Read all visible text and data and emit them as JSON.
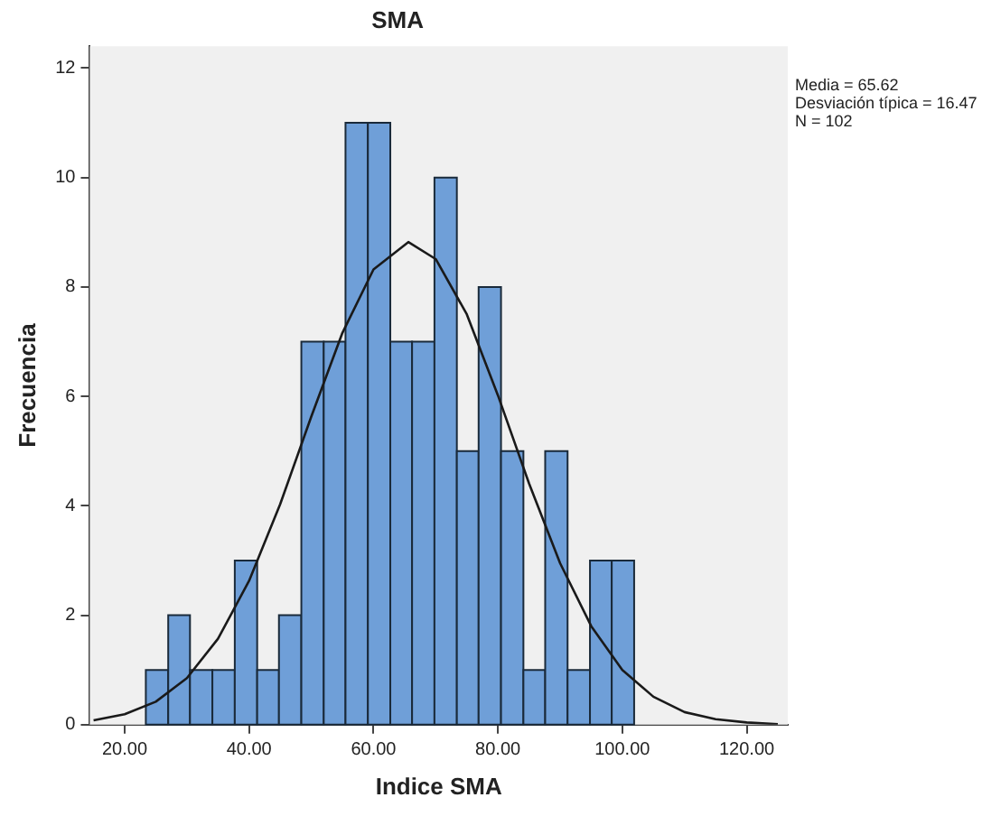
{
  "chart_data": {
    "type": "histogram",
    "title": "SMA",
    "xlabel": "Indice SMA",
    "ylabel": "Frecuencia",
    "bins": [
      23.4,
      27.0,
      30.5,
      34.1,
      37.7,
      41.3,
      44.8,
      48.4,
      52.0,
      55.5,
      59.1,
      62.7,
      66.2,
      69.8,
      73.4,
      76.9,
      80.5,
      84.1,
      87.6,
      91.2,
      94.8,
      98.3,
      101.9
    ],
    "values": [
      1,
      2,
      1,
      1,
      3,
      1,
      2,
      7,
      7,
      11,
      11,
      7,
      7,
      10,
      5,
      8,
      5,
      1,
      5,
      1,
      3,
      3
    ],
    "color": "#6f9fd8",
    "series": [
      {
        "type": "line",
        "color": "#1a1a1a",
        "x": [
          15,
          20,
          25,
          30,
          35,
          40,
          45,
          50,
          55,
          60,
          65.6,
          70,
          75,
          80,
          85,
          90,
          95,
          100,
          105,
          110,
          115,
          120,
          125
        ],
        "values": [
          0.08,
          0.19,
          0.42,
          0.85,
          1.57,
          2.63,
          4.03,
          5.63,
          7.16,
          8.32,
          8.82,
          8.51,
          7.5,
          6.02,
          4.41,
          2.95,
          1.8,
          1.0,
          0.51,
          0.23,
          0.1,
          0.04,
          0.01
        ]
      }
    ],
    "xlim": [
      14.4,
      126.6
    ],
    "xticks": [
      {
        "value": 20,
        "label": "20.00"
      },
      {
        "value": 40,
        "label": "40.00"
      },
      {
        "value": 60,
        "label": "60.00"
      },
      {
        "value": 80,
        "label": "80.00"
      },
      {
        "value": 100,
        "label": "100.00"
      },
      {
        "value": 120,
        "label": "120.00"
      }
    ],
    "ylim": [
      0,
      12.4
    ],
    "yticks": [
      0,
      2,
      4,
      6,
      8,
      10,
      12
    ],
    "grid": false,
    "annotations": [
      "Media = 65.62\nDesviación típica = 16.47\nN = 102"
    ]
  }
}
